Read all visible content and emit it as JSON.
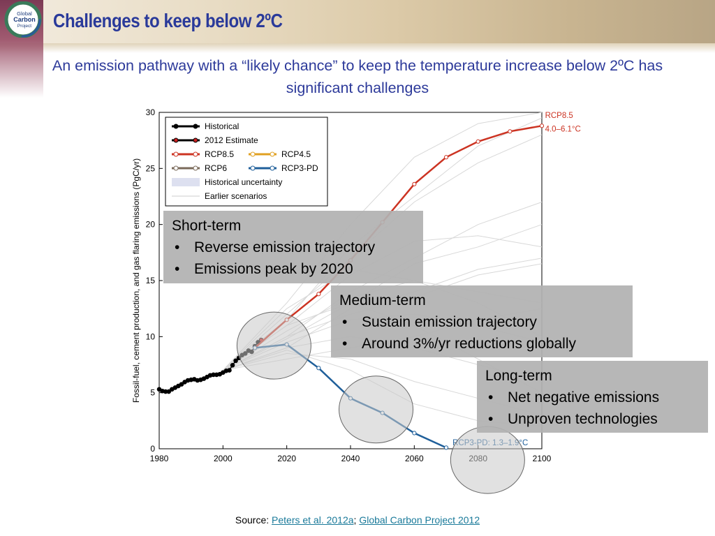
{
  "slide": {
    "title": "Challenges to keep below 2ºC",
    "subtitle": "An emission pathway with a “likely chance” to keep the temperature increase below 2ºC has significant challenges",
    "logo_text": [
      "Global",
      "Carbon",
      "Project"
    ],
    "source_prefix": "Source: ",
    "source_link1": "Peters et al. 2012a",
    "source_sep": "; ",
    "source_link2": "Global Carbon Project 2012"
  },
  "callouts": [
    {
      "heading": "Short-term",
      "items": [
        "Reverse emission trajectory",
        "Emissions peak by 2020"
      ]
    },
    {
      "heading": "Medium-term",
      "items": [
        "Sustain emission trajectory",
        "Around 3%/yr reductions globally"
      ]
    },
    {
      "heading": "Long-term",
      "items": [
        "Net negative emissions",
        "Unproven technologies"
      ]
    }
  ],
  "colors": {
    "historical": "#000000",
    "estimate": "#cc2222",
    "rcp85": "#cc3322",
    "rcp45": "#e0a020",
    "rcp6": "#7a6a5a",
    "rcp3pd": "#1f5f9a",
    "uncertainty": "#dde0f0",
    "earlier": "#d8d8d8",
    "title": "#2a3a9a",
    "link": "#1a7a9a"
  },
  "chart_data": {
    "type": "line",
    "ylabel": "Fossil-fuel, cement production, and gas flaring emissions (PgC/yr)",
    "xlim": [
      1980,
      2100
    ],
    "ylim": [
      0,
      30
    ],
    "xticks": [
      1980,
      2000,
      2020,
      2040,
      2060,
      2080,
      2100
    ],
    "yticks": [
      0,
      5,
      10,
      15,
      20,
      25,
      30
    ],
    "legend": [
      {
        "label": "Historical",
        "key": "historical"
      },
      {
        "label": "2012 Estimate",
        "key": "estimate"
      },
      {
        "label": "RCP8.5",
        "key": "rcp85"
      },
      {
        "label": "RCP4.5",
        "key": "rcp45"
      },
      {
        "label": "RCP6",
        "key": "rcp6"
      },
      {
        "label": "RCP3-PD",
        "key": "rcp3pd"
      },
      {
        "label": "Historical uncertainty",
        "key": "uncertainty"
      },
      {
        "label": "Earlier scenarios",
        "key": "earlier"
      }
    ],
    "legend_position": "top-left",
    "series": [
      {
        "name": "Historical",
        "key": "historical",
        "x": [
          1980,
          1981,
          1982,
          1983,
          1984,
          1985,
          1986,
          1987,
          1988,
          1989,
          1990,
          1991,
          1992,
          1993,
          1994,
          1995,
          1996,
          1997,
          1998,
          1999,
          2000,
          2001,
          2002,
          2003,
          2004,
          2005,
          2006,
          2007,
          2008,
          2009,
          2010,
          2011
        ],
        "y": [
          5.3,
          5.15,
          5.1,
          5.1,
          5.3,
          5.45,
          5.6,
          5.75,
          5.95,
          6.1,
          6.15,
          6.2,
          6.1,
          6.15,
          6.25,
          6.4,
          6.55,
          6.6,
          6.6,
          6.65,
          6.8,
          6.95,
          7.0,
          7.45,
          7.85,
          8.1,
          8.35,
          8.5,
          8.75,
          8.65,
          9.15,
          9.5
        ]
      },
      {
        "name": "2012 Estimate",
        "key": "estimate",
        "x": [
          2012
        ],
        "y": [
          9.7
        ]
      },
      {
        "name": "RCP8.5",
        "key": "rcp85",
        "x": [
          2010,
          2020,
          2030,
          2040,
          2050,
          2060,
          2070,
          2080,
          2090,
          2100
        ],
        "y": [
          9.0,
          11.5,
          13.8,
          16.8,
          20.2,
          23.6,
          26.0,
          27.4,
          28.3,
          28.8
        ]
      },
      {
        "name": "RCP3-PD",
        "key": "rcp3pd",
        "x": [
          2010,
          2020,
          2030,
          2040,
          2050,
          2060,
          2070
        ],
        "y": [
          9.0,
          9.3,
          7.2,
          4.5,
          3.2,
          1.4,
          0.1
        ]
      }
    ],
    "earlier_scenarios": [
      [
        [
          2000,
          7.0
        ],
        [
          2020,
          12.0
        ],
        [
          2040,
          17.0
        ],
        [
          2060,
          22.0
        ],
        [
          2080,
          25.5
        ],
        [
          2100,
          28.0
        ]
      ],
      [
        [
          2000,
          7.0
        ],
        [
          2020,
          11.0
        ],
        [
          2040,
          15.5
        ],
        [
          2060,
          18.5
        ],
        [
          2080,
          19.0
        ],
        [
          2100,
          18.0
        ]
      ],
      [
        [
          2000,
          7.0
        ],
        [
          2020,
          10.5
        ],
        [
          2040,
          13.5
        ],
        [
          2060,
          15.0
        ],
        [
          2080,
          14.0
        ],
        [
          2100,
          13.0
        ]
      ],
      [
        [
          2000,
          7.0
        ],
        [
          2020,
          9.5
        ],
        [
          2040,
          11.5
        ],
        [
          2060,
          12.0
        ],
        [
          2080,
          11.0
        ],
        [
          2100,
          9.5
        ]
      ],
      [
        [
          2000,
          7.0
        ],
        [
          2020,
          9.0
        ],
        [
          2040,
          10.0
        ],
        [
          2060,
          9.0
        ],
        [
          2080,
          7.5
        ],
        [
          2100,
          6.0
        ]
      ],
      [
        [
          2000,
          7.0
        ],
        [
          2020,
          8.5
        ],
        [
          2040,
          8.0
        ],
        [
          2060,
          6.0
        ],
        [
          2080,
          4.5
        ],
        [
          2100,
          3.0
        ]
      ],
      [
        [
          2000,
          7.0
        ],
        [
          2020,
          13.0
        ],
        [
          2040,
          20.0
        ],
        [
          2060,
          26.0
        ],
        [
          2080,
          29.0
        ],
        [
          2100,
          30.0
        ]
      ],
      [
        [
          2000,
          7.0
        ],
        [
          2020,
          11.5
        ],
        [
          2040,
          18.0
        ],
        [
          2060,
          22.5
        ],
        [
          2080,
          27.0
        ],
        [
          2100,
          29.5
        ]
      ],
      [
        [
          2000,
          7.0
        ],
        [
          2020,
          10.0
        ],
        [
          2040,
          14.0
        ],
        [
          2060,
          17.0
        ],
        [
          2080,
          20.0
        ],
        [
          2100,
          22.0
        ]
      ],
      [
        [
          2000,
          7.0
        ],
        [
          2020,
          9.0
        ],
        [
          2040,
          12.5
        ],
        [
          2060,
          14.0
        ],
        [
          2080,
          16.0
        ],
        [
          2100,
          17.0
        ]
      ],
      [
        [
          2000,
          7.0
        ],
        [
          2020,
          8.0
        ],
        [
          2040,
          9.0
        ],
        [
          2060,
          10.0
        ],
        [
          2080,
          11.5
        ],
        [
          2100,
          12.5
        ]
      ],
      [
        [
          2000,
          7.0
        ],
        [
          2020,
          12.5
        ],
        [
          2040,
          16.0
        ],
        [
          2060,
          15.0
        ],
        [
          2080,
          13.0
        ],
        [
          2100,
          10.0
        ]
      ],
      [
        [
          2000,
          7.0
        ],
        [
          2020,
          10.0
        ],
        [
          2040,
          12.0
        ],
        [
          2060,
          13.5
        ],
        [
          2080,
          15.5
        ],
        [
          2100,
          16.5
        ]
      ],
      [
        [
          2000,
          7.0
        ],
        [
          2020,
          9.8
        ],
        [
          2040,
          13.0
        ],
        [
          2060,
          16.5
        ],
        [
          2080,
          18.0
        ],
        [
          2100,
          20.0
        ]
      ],
      [
        [
          2000,
          7.0
        ],
        [
          2020,
          11.0
        ],
        [
          2040,
          13.0
        ],
        [
          2060,
          11.0
        ],
        [
          2080,
          8.0
        ],
        [
          2100,
          5.0
        ]
      ],
      [
        [
          2000,
          7.0
        ],
        [
          2020,
          8.8
        ],
        [
          2040,
          7.0
        ],
        [
          2060,
          4.0
        ],
        [
          2080,
          2.5
        ],
        [
          2100,
          2.0
        ]
      ]
    ],
    "annotations": [
      {
        "text": "RCP8.5",
        "x": 2101,
        "y": 29.5,
        "key": "rcp85"
      },
      {
        "text": "4.0–6.1°C",
        "x": 2101,
        "y": 28.3,
        "key": "rcp85"
      },
      {
        "text": "RCP3-PD: 1.3–1.9°C",
        "x": 2072,
        "y": 0.3,
        "key": "rcp3pd"
      }
    ],
    "circles": [
      {
        "x": 2016,
        "y": 9.2
      },
      {
        "x": 2048,
        "y": 3.5
      },
      {
        "x": 2083,
        "y": -1.0
      }
    ]
  }
}
